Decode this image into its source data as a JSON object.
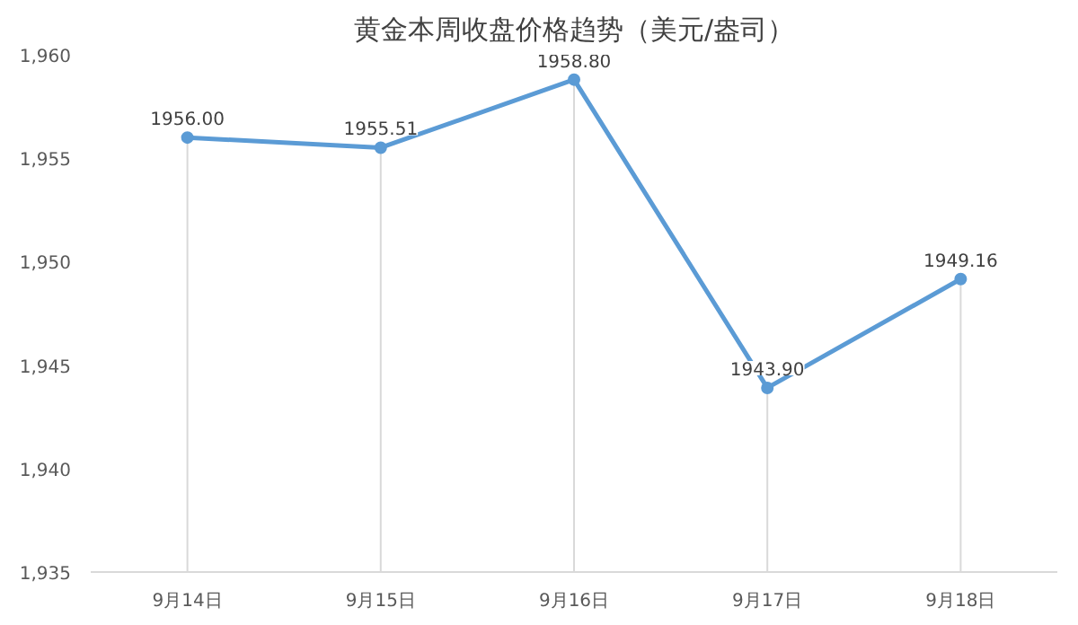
{
  "chart_data": {
    "type": "line",
    "title": "黄金本周收盘价格趋势（美元/盎司）",
    "categories": [
      "9月14日",
      "9月15日",
      "9月16日",
      "9月17日",
      "9月18日"
    ],
    "series": [
      {
        "color": "#5b9bd5",
        "values": [
          1956.0,
          1955.51,
          1958.8,
          1943.9,
          1949.16
        ],
        "value_labels": [
          "1956.00",
          "1955.51",
          "1958.80",
          "1943.90",
          "1949.16"
        ]
      }
    ],
    "ylim": [
      1935,
      1960
    ],
    "yticks": [
      {
        "value": 1935,
        "label": "1,935"
      },
      {
        "value": 1940,
        "label": "1,940"
      },
      {
        "value": 1945,
        "label": "1,945"
      },
      {
        "value": 1950,
        "label": "1,950"
      },
      {
        "value": 1955,
        "label": "1,955"
      },
      {
        "value": 1960,
        "label": "1,960"
      }
    ],
    "grid": "x",
    "marker": "circle",
    "line_style": "solid"
  }
}
